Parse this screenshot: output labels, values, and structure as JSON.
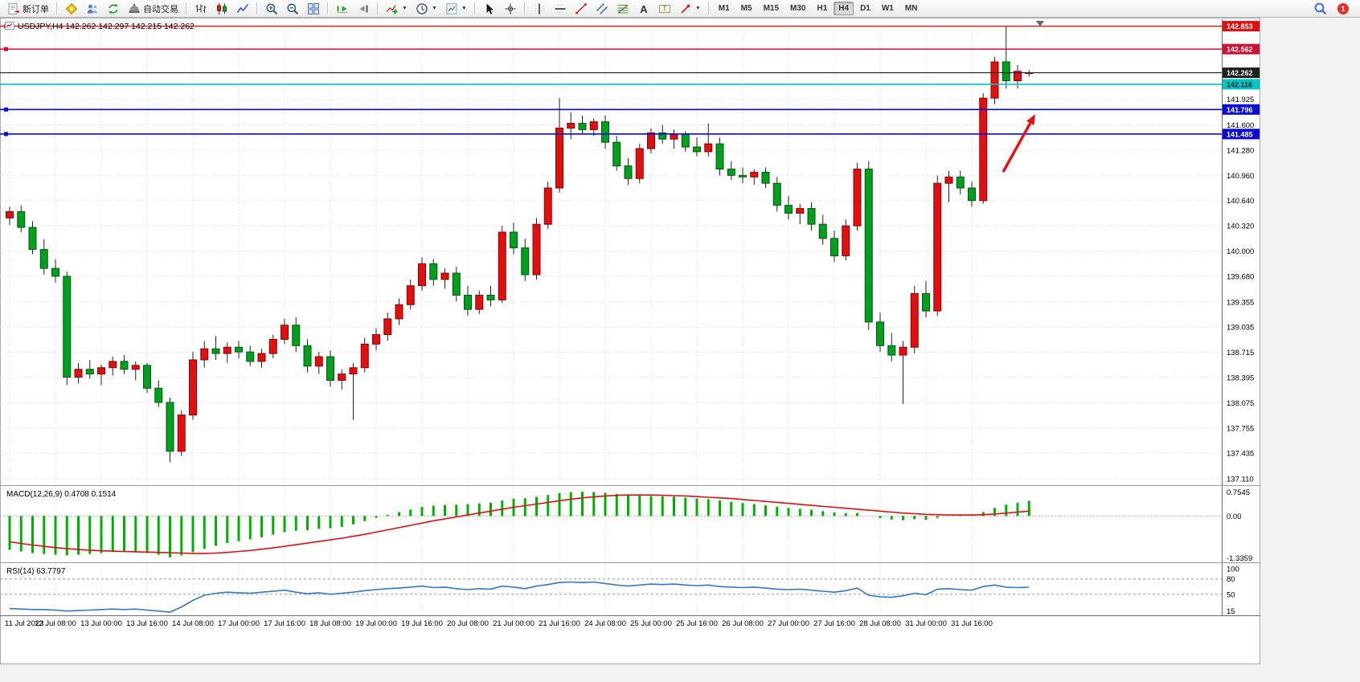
{
  "toolbar": {
    "new_order": "新订单",
    "autotrading": "自动交易",
    "notification_count": "1",
    "timeframes": [
      "M1",
      "M5",
      "M15",
      "M30",
      "H1",
      "H4",
      "D1",
      "W1",
      "MN"
    ],
    "active_timeframe": "H4",
    "items": [
      {
        "type": "button",
        "name": "new-order",
        "label": "新订单"
      },
      {
        "type": "sep"
      },
      {
        "type": "button",
        "name": "metaeditor"
      },
      {
        "type": "button",
        "name": "profiles"
      },
      {
        "type": "button",
        "name": "refresh"
      },
      {
        "type": "button",
        "name": "autotrading",
        "label": "自动交易"
      },
      {
        "type": "sep"
      },
      {
        "type": "button",
        "name": "bar-chart"
      },
      {
        "type": "button",
        "name": "candle-chart"
      },
      {
        "type": "button",
        "name": "line-chart"
      },
      {
        "type": "sep"
      },
      {
        "type": "button",
        "name": "zoom-in"
      },
      {
        "type": "button",
        "name": "zoom-out"
      },
      {
        "type": "button",
        "name": "tile-windows"
      },
      {
        "type": "sep"
      },
      {
        "type": "button",
        "name": "auto-scroll"
      },
      {
        "type": "button",
        "name": "chart-shift"
      },
      {
        "type": "sep"
      },
      {
        "type": "button",
        "name": "indicators",
        "caret": true
      },
      {
        "type": "button",
        "name": "periods",
        "caret": true
      },
      {
        "type": "button",
        "name": "templates",
        "caret": true
      },
      {
        "type": "sep"
      },
      {
        "type": "button",
        "name": "cursor"
      },
      {
        "type": "button",
        "name": "crosshair"
      },
      {
        "type": "sep"
      },
      {
        "type": "button",
        "name": "vertical-line"
      },
      {
        "type": "button",
        "name": "horizontal-line"
      },
      {
        "type": "button",
        "name": "trendline"
      },
      {
        "type": "button",
        "name": "channel"
      },
      {
        "type": "button",
        "name": "fibonacci"
      },
      {
        "type": "button",
        "name": "text"
      },
      {
        "type": "button",
        "name": "text-label"
      },
      {
        "type": "button",
        "name": "arrows",
        "caret": true
      },
      {
        "type": "sep"
      },
      {
        "type": "timeframes"
      }
    ]
  },
  "chart": {
    "title": "USDJPY,H4 142.262 142.297 142.215 142.262",
    "macd_label": "MACD(12,26,9) 0.4708 0.1514",
    "rsi_label": "RSI(14) 63.7797"
  },
  "chart_data": {
    "type": "candlestick",
    "symbol": "USDJPY",
    "timeframe": "H4",
    "current_ohlc": {
      "open": 142.262,
      "high": 142.297,
      "low": 142.215,
      "close": 142.262
    },
    "price_axis": {
      "range": [
        137.05,
        142.92
      ],
      "ticks": [
        "141.925",
        "141.600",
        "141.280",
        "140.960",
        "140.640",
        "140.320",
        "140.000",
        "139.680",
        "139.355",
        "139.035",
        "138.715",
        "138.395",
        "138.075",
        "137.755",
        "137.435",
        "137.110"
      ]
    },
    "time_axis": [
      "11 Jul 2023",
      "12 Jul 08:00",
      "13 Jul 00:00",
      "13 Jul 16:00",
      "14 Jul 08:00",
      "17 Jul 00:00",
      "17 Jul 16:00",
      "18 Jul 08:00",
      "19 Jul 00:00",
      "19 Jul 16:00",
      "20 Jul 08:00",
      "21 Jul 00:00",
      "21 Jul 16:00",
      "24 Jul 08:00",
      "25 Jul 00:00",
      "25 Jul 16:00",
      "26 Jul 08:00",
      "27 Jul 00:00",
      "27 Jul 16:00",
      "28 Jul 08:00",
      "31 Jul 00:00",
      "31 Jul 16:00"
    ],
    "colors": {
      "up": "#e01010",
      "up_border": "#8f0000",
      "down": "#00a01c",
      "down_border": "#005914",
      "wick": "#222222",
      "grid": "#d8d8d8",
      "macd_hist": "#00b200",
      "macd_signal": "#e01010",
      "rsi_line": "#3377cc"
    },
    "candles": [
      [
        140.42,
        140.56,
        140.33,
        140.5
      ],
      [
        140.5,
        140.58,
        140.24,
        140.3
      ],
      [
        140.3,
        140.38,
        139.96,
        140.02
      ],
      [
        140.02,
        140.15,
        139.7,
        139.78
      ],
      [
        139.78,
        139.9,
        139.6,
        139.68
      ],
      [
        139.68,
        139.74,
        138.3,
        138.4
      ],
      [
        138.4,
        138.58,
        138.32,
        138.5
      ],
      [
        138.5,
        138.62,
        138.38,
        138.44
      ],
      [
        138.44,
        138.56,
        138.3,
        138.52
      ],
      [
        138.52,
        138.66,
        138.42,
        138.6
      ],
      [
        138.6,
        138.68,
        138.44,
        138.5
      ],
      [
        138.5,
        138.6,
        138.36,
        138.55
      ],
      [
        138.55,
        138.58,
        138.2,
        138.26
      ],
      [
        138.26,
        138.36,
        138.02,
        138.08
      ],
      [
        138.08,
        138.14,
        137.32,
        137.46
      ],
      [
        137.46,
        137.98,
        137.4,
        137.92
      ],
      [
        137.92,
        138.72,
        137.86,
        138.62
      ],
      [
        138.62,
        138.86,
        138.52,
        138.76
      ],
      [
        138.76,
        138.92,
        138.62,
        138.7
      ],
      [
        138.7,
        138.84,
        138.58,
        138.78
      ],
      [
        138.78,
        138.86,
        138.64,
        138.72
      ],
      [
        138.72,
        138.8,
        138.54,
        138.6
      ],
      [
        138.6,
        138.76,
        138.52,
        138.7
      ],
      [
        138.7,
        138.94,
        138.64,
        138.88
      ],
      [
        138.88,
        139.14,
        138.82,
        139.06
      ],
      [
        139.06,
        139.16,
        138.72,
        138.8
      ],
      [
        138.8,
        138.88,
        138.46,
        138.54
      ],
      [
        138.54,
        138.72,
        138.44,
        138.66
      ],
      [
        138.66,
        138.74,
        138.28,
        138.36
      ],
      [
        138.36,
        138.5,
        138.24,
        138.44
      ],
      [
        138.44,
        138.58,
        137.86,
        138.52
      ],
      [
        138.52,
        138.9,
        138.46,
        138.82
      ],
      [
        138.82,
        139.02,
        138.74,
        138.94
      ],
      [
        138.94,
        139.22,
        138.86,
        139.14
      ],
      [
        139.14,
        139.4,
        139.06,
        139.32
      ],
      [
        139.32,
        139.64,
        139.26,
        139.56
      ],
      [
        139.56,
        139.92,
        139.5,
        139.84
      ],
      [
        139.84,
        139.9,
        139.56,
        139.64
      ],
      [
        139.64,
        139.78,
        139.52,
        139.72
      ],
      [
        139.72,
        139.8,
        139.36,
        139.44
      ],
      [
        139.44,
        139.56,
        139.18,
        139.26
      ],
      [
        139.26,
        139.5,
        139.2,
        139.44
      ],
      [
        139.44,
        139.56,
        139.3,
        139.38
      ],
      [
        139.38,
        140.32,
        139.34,
        140.24
      ],
      [
        140.24,
        140.36,
        139.96,
        140.04
      ],
      [
        140.04,
        140.16,
        139.62,
        139.7
      ],
      [
        139.7,
        140.42,
        139.64,
        140.34
      ],
      [
        140.34,
        140.88,
        140.28,
        140.8
      ],
      [
        140.8,
        141.94,
        140.74,
        141.56
      ],
      [
        141.56,
        141.76,
        141.42,
        141.62
      ],
      [
        141.62,
        141.72,
        141.48,
        141.54
      ],
      [
        141.54,
        141.68,
        141.46,
        141.64
      ],
      [
        141.64,
        141.72,
        141.3,
        141.38
      ],
      [
        141.38,
        141.46,
        141.02,
        141.08
      ],
      [
        141.08,
        141.18,
        140.84,
        140.92
      ],
      [
        140.92,
        141.36,
        140.86,
        141.3
      ],
      [
        141.3,
        141.56,
        141.24,
        141.5
      ],
      [
        141.5,
        141.6,
        141.36,
        141.42
      ],
      [
        141.42,
        141.54,
        141.3,
        141.48
      ],
      [
        141.48,
        141.52,
        141.26,
        141.32
      ],
      [
        141.32,
        141.44,
        141.2,
        141.26
      ],
      [
        141.26,
        141.62,
        141.2,
        141.36
      ],
      [
        141.36,
        141.44,
        140.96,
        141.04
      ],
      [
        141.04,
        141.14,
        140.9,
        140.96
      ],
      [
        140.96,
        141.06,
        140.86,
        140.94
      ],
      [
        140.94,
        141.04,
        140.84,
        141.0
      ],
      [
        141.0,
        141.06,
        140.8,
        140.86
      ],
      [
        140.86,
        140.94,
        140.5,
        140.58
      ],
      [
        140.58,
        140.7,
        140.4,
        140.48
      ],
      [
        140.48,
        140.6,
        140.34,
        140.54
      ],
      [
        140.54,
        140.62,
        140.26,
        140.34
      ],
      [
        140.34,
        140.46,
        140.08,
        140.16
      ],
      [
        140.16,
        140.26,
        139.86,
        139.94
      ],
      [
        139.94,
        140.4,
        139.88,
        140.32
      ],
      [
        140.32,
        141.12,
        140.26,
        141.04
      ],
      [
        141.04,
        141.14,
        139.0,
        139.1
      ],
      [
        139.1,
        139.22,
        138.72,
        138.8
      ],
      [
        138.8,
        138.96,
        138.6,
        138.68
      ],
      [
        138.68,
        138.86,
        138.06,
        138.78
      ],
      [
        138.78,
        139.56,
        138.7,
        139.46
      ],
      [
        139.46,
        139.62,
        139.16,
        139.24
      ],
      [
        139.24,
        140.96,
        139.18,
        140.86
      ],
      [
        140.86,
        141.02,
        140.62,
        140.94
      ],
      [
        140.94,
        141.02,
        140.72,
        140.8
      ],
      [
        140.8,
        140.88,
        140.56,
        140.64
      ],
      [
        140.64,
        142.0,
        140.6,
        141.94
      ],
      [
        141.94,
        142.46,
        141.86,
        142.4
      ],
      [
        142.4,
        142.853,
        142.06,
        142.16
      ],
      [
        142.16,
        142.36,
        142.06,
        142.28
      ],
      [
        142.262,
        142.297,
        142.215,
        142.262
      ]
    ],
    "hlines": [
      {
        "price": 142.853,
        "label": "142.853",
        "color": "#dd1111",
        "text_color": "#ffffff",
        "width": 1.4,
        "handle": true
      },
      {
        "price": 142.562,
        "label": "142.562",
        "color": "#cc1133",
        "text_color": "#ffffff",
        "width": 1.4,
        "handle": true
      },
      {
        "price": 142.262,
        "label": "142.262",
        "color": "#1f1f1f",
        "text_color": "#ffffff",
        "width": 1.2,
        "handle": false
      },
      {
        "price": 142.116,
        "label": "142.116",
        "color": "#00c6c6",
        "text_color": "#002a2a",
        "width": 1.6,
        "handle": false
      },
      {
        "price": 141.796,
        "label": "141.796",
        "color": "#0808d8",
        "text_color": "#ffffff",
        "width": 1.6,
        "handle": true
      },
      {
        "price": 141.485,
        "label": "141.485",
        "color": "#0808d8",
        "text_color": "#ffffff",
        "width": 1.6,
        "handle": true
      }
    ],
    "arrow": {
      "from": [
        1248,
        214
      ],
      "to": [
        1288,
        142
      ],
      "color": "#e81010"
    },
    "macd": {
      "label": "MACD(12,26,9)",
      "macd_value": 0.4708,
      "signal_value": 0.1514,
      "max": 0.7545,
      "min": -1.3359,
      "axis_labels": [
        "0.7545",
        "0.00",
        "-1.3359"
      ],
      "histogram": [
        -1.05,
        -1.1,
        -1.15,
        -1.18,
        -1.2,
        -1.22,
        -1.2,
        -1.18,
        -1.15,
        -1.12,
        -1.1,
        -1.12,
        -1.15,
        -1.2,
        -1.28,
        -1.22,
        -1.12,
        -1.02,
        -0.92,
        -0.84,
        -0.78,
        -0.72,
        -0.66,
        -0.58,
        -0.5,
        -0.46,
        -0.44,
        -0.4,
        -0.38,
        -0.34,
        -0.26,
        -0.16,
        -0.06,
        0.04,
        0.12,
        0.2,
        0.28,
        0.32,
        0.34,
        0.35,
        0.37,
        0.39,
        0.41,
        0.48,
        0.53,
        0.55,
        0.59,
        0.65,
        0.71,
        0.74,
        0.75,
        0.74,
        0.72,
        0.68,
        0.65,
        0.63,
        0.62,
        0.61,
        0.6,
        0.57,
        0.54,
        0.52,
        0.48,
        0.44,
        0.4,
        0.37,
        0.33,
        0.29,
        0.25,
        0.22,
        0.19,
        0.15,
        0.11,
        0.09,
        0.09,
        0.0,
        -0.07,
        -0.11,
        -0.13,
        -0.1,
        -0.12,
        -0.06,
        0.0,
        0.03,
        0.04,
        0.12,
        0.25,
        0.35,
        0.41,
        0.4708
      ],
      "signal": [
        -0.8,
        -0.85,
        -0.9,
        -0.94,
        -0.98,
        -1.01,
        -1.04,
        -1.06,
        -1.08,
        -1.09,
        -1.1,
        -1.11,
        -1.12,
        -1.13,
        -1.14,
        -1.15,
        -1.16,
        -1.16,
        -1.15,
        -1.13,
        -1.1,
        -1.07,
        -1.03,
        -0.99,
        -0.94,
        -0.89,
        -0.84,
        -0.79,
        -0.74,
        -0.69,
        -0.63,
        -0.57,
        -0.5,
        -0.43,
        -0.36,
        -0.29,
        -0.22,
        -0.15,
        -0.09,
        -0.03,
        0.03,
        0.09,
        0.15,
        0.21,
        0.27,
        0.32,
        0.37,
        0.42,
        0.47,
        0.52,
        0.56,
        0.59,
        0.62,
        0.64,
        0.65,
        0.65,
        0.65,
        0.64,
        0.63,
        0.62,
        0.6,
        0.58,
        0.56,
        0.54,
        0.51,
        0.48,
        0.45,
        0.42,
        0.39,
        0.36,
        0.33,
        0.3,
        0.27,
        0.24,
        0.21,
        0.18,
        0.15,
        0.12,
        0.09,
        0.07,
        0.05,
        0.04,
        0.03,
        0.03,
        0.03,
        0.04,
        0.06,
        0.09,
        0.12,
        0.1514
      ]
    },
    "rsi": {
      "label": "RSI(14)",
      "value": 63.7797,
      "max": 100,
      "min": 15,
      "levels": [
        80,
        50
      ],
      "axis_labels": [
        "100",
        "80",
        "50",
        "15"
      ],
      "values": [
        22,
        21,
        20,
        20,
        19,
        17,
        18,
        19,
        20,
        21,
        20,
        21,
        19,
        17,
        15,
        25,
        38,
        48,
        52,
        54,
        53,
        52,
        54,
        56,
        58,
        54,
        51,
        53,
        50,
        52,
        54,
        57,
        59,
        61,
        62,
        64,
        66,
        63,
        64,
        61,
        59,
        61,
        60,
        66,
        64,
        61,
        66,
        69,
        73,
        74,
        73,
        74,
        71,
        68,
        66,
        68,
        70,
        69,
        70,
        68,
        67,
        68,
        65,
        64,
        63,
        64,
        62,
        60,
        59,
        60,
        58,
        56,
        54,
        57,
        62,
        48,
        45,
        44,
        47,
        52,
        49,
        60,
        61,
        59,
        58,
        65,
        68,
        64,
        63,
        63.78
      ]
    }
  }
}
